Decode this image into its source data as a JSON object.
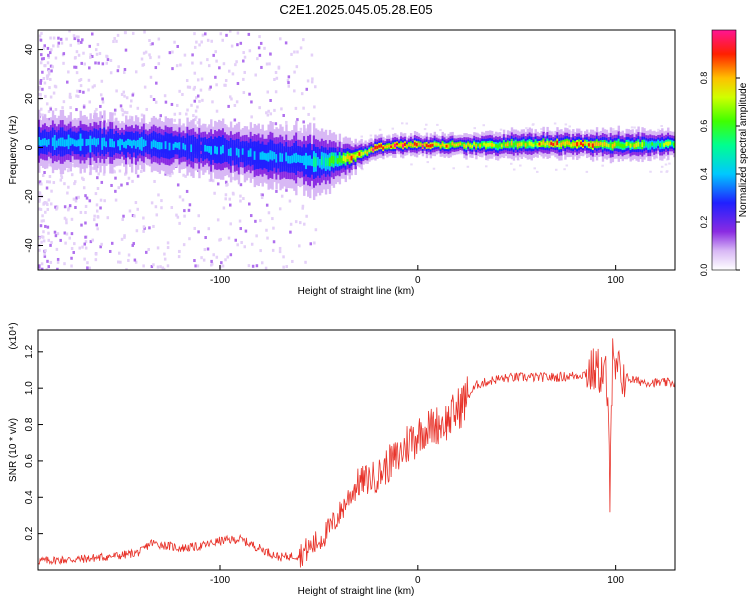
{
  "title": "C2E1.2025.045.05.28.E05",
  "colors": {
    "snr_line": "#e8332a",
    "axis": "#000000",
    "background": "#ffffff"
  },
  "chart_data": [
    {
      "type": "heatmap",
      "xlabel": "Height of straight line (km)",
      "ylabel": "Frequency (Hz)",
      "xlim": [
        -192,
        130
      ],
      "ylim": [
        -50,
        48
      ],
      "x_ticks": [
        -100,
        0,
        100
      ],
      "y_ticks": [
        -40,
        -20,
        0,
        20,
        40
      ],
      "grid": false,
      "colorbar": {
        "label": "Normalized spectral amplitude",
        "range": [
          0,
          1
        ],
        "ticks": [
          0.0,
          0.2,
          0.4,
          0.6,
          0.8
        ],
        "tick_labels": [
          "0.0",
          "0.2",
          "0.4",
          "0.6",
          "0.8"
        ],
        "colormap": "rainbow",
        "placement": "right"
      },
      "ridge": {
        "x": [
          -192,
          -160,
          -140,
          -120,
          -100,
          -80,
          -60,
          -50,
          -40,
          -30,
          -20,
          -10,
          0,
          20,
          40,
          60,
          80,
          100,
          130
        ],
        "center_hz": [
          2,
          2,
          1.5,
          0.5,
          -1,
          -3,
          -5,
          -6,
          -5,
          -3,
          0,
          1,
          1,
          1,
          1,
          1.5,
          1.5,
          1,
          1.5
        ],
        "amplitude": [
          0.45,
          0.45,
          0.45,
          0.42,
          0.4,
          0.42,
          0.45,
          0.55,
          0.7,
          0.85,
          0.9,
          0.9,
          0.92,
          0.8,
          0.7,
          0.85,
          0.9,
          0.75,
          0.65
        ],
        "width_hz": [
          5,
          5,
          4.5,
          4.5,
          5,
          5,
          6,
          6,
          4,
          2.5,
          2,
          2,
          2,
          2,
          2.5,
          2.5,
          2.5,
          3,
          2.5
        ]
      }
    },
    {
      "type": "line",
      "xlabel": "Height of straight line (km)",
      "ylabel": "SNR (10 * v/v)",
      "y_multiplier": "(x10⁴)",
      "xlim": [
        -192,
        130
      ],
      "ylim": [
        0,
        1.32
      ],
      "x_ticks": [
        -100,
        0,
        100
      ],
      "y_ticks": [
        0.2,
        0.4,
        0.6,
        0.8,
        1.0,
        1.2
      ],
      "y_tick_labels": [
        "0.2",
        "0.4",
        "0.6",
        "0.8",
        "1.0",
        "1.2"
      ],
      "grid": false,
      "series": [
        {
          "x": [
            -192,
            -170,
            -150,
            -140,
            -135,
            -130,
            -120,
            -110,
            -100,
            -90,
            -80,
            -70,
            -60,
            -55,
            -50,
            -45,
            -40,
            -35,
            -30,
            -25,
            -20,
            -15,
            -10,
            -5,
            0,
            5,
            10,
            15,
            20,
            25,
            30,
            40,
            50,
            60,
            70,
            80,
            85,
            90,
            95,
            97,
            98,
            100,
            105,
            110,
            120,
            130
          ],
          "y": [
            0.05,
            0.06,
            0.08,
            0.1,
            0.15,
            0.14,
            0.12,
            0.13,
            0.16,
            0.17,
            0.12,
            0.07,
            0.08,
            0.12,
            0.16,
            0.22,
            0.3,
            0.4,
            0.48,
            0.5,
            0.52,
            0.58,
            0.62,
            0.7,
            0.75,
            0.78,
            0.8,
            0.82,
            0.88,
            0.95,
            1.02,
            1.05,
            1.06,
            1.06,
            1.06,
            1.07,
            1.08,
            1.1,
            1.08,
            0.5,
            1.05,
            1.1,
            1.06,
            1.04,
            1.03,
            1.03
          ]
        }
      ]
    }
  ]
}
